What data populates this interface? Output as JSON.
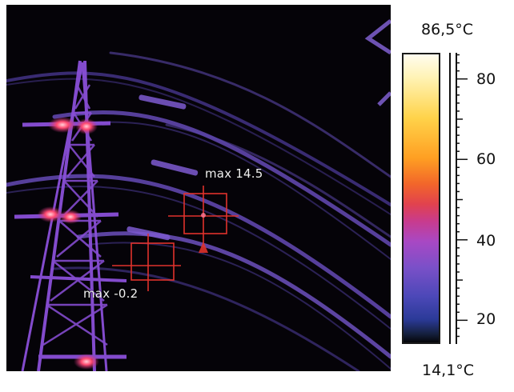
{
  "scale": {
    "max_label": "86,5°C",
    "min_label": "14,1°C",
    "max_value": 86.5,
    "min_value": 14.1,
    "ticks": [
      "80",
      "60",
      "40",
      "20"
    ],
    "tick_values": [
      80,
      60,
      40,
      20
    ],
    "palette": "iron"
  },
  "measurements": [
    {
      "label": "max 14.5"
    },
    {
      "label": "max -0.2"
    }
  ],
  "colors": {
    "background": "#050308",
    "box": "#e0322c",
    "hot": "#ff4a5c",
    "wire": "#6a4fb8"
  }
}
